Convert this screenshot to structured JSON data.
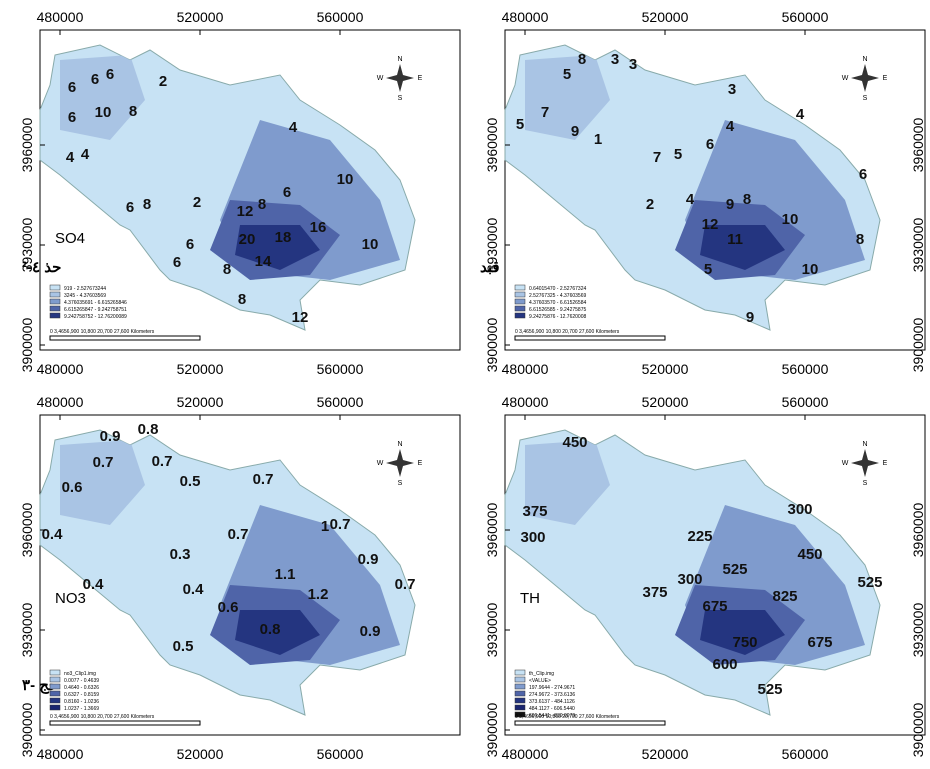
{
  "x_ticks": [
    480000,
    520000,
    560000
  ],
  "y_ticks": [
    3960000,
    3930000,
    3900000
  ],
  "panels": [
    {
      "label": "SO4",
      "note": "حذ ٤-²",
      "contour_labels": [
        "6",
        "6",
        "6",
        "2",
        "10",
        "8",
        "6",
        "4",
        "4",
        "4",
        "10",
        "6",
        "8",
        "2",
        "12",
        "8",
        "6",
        "16",
        "10",
        "20",
        "18",
        "6",
        "6",
        "14",
        "8",
        "8",
        "12"
      ],
      "legend": [
        "919 - 2.527673244",
        "3245 - 4.37603569",
        "4.376035691 - 6.615265846",
        "6.615265847 - 9.242758751",
        "9.242758752 - 12.76200089"
      ]
    },
    {
      "label": null,
      "note": "قبد",
      "contour_labels": [
        "5",
        "8",
        "3",
        "3",
        "3",
        "4",
        "5",
        "7",
        "9",
        "1",
        "6",
        "4",
        "7",
        "5",
        "2",
        "4",
        "12",
        "9",
        "8",
        "10",
        "11",
        "5",
        "10",
        "8",
        "6",
        "9"
      ],
      "legend": [
        "0.64015470 - 2.52767324",
        "2.52767325 - 4.37603569",
        "4.37603570 - 6.61526584",
        "6.61526585 - 9.24275875",
        "9.24275876 - 12.7620008"
      ]
    },
    {
      "label": "NO3",
      "note": "حج -٣",
      "contour_labels": [
        "0.9",
        "0.8",
        "0.7",
        "0.7",
        "0.6",
        "0.5",
        "0.7",
        "0.4",
        "0.3",
        "0.7",
        "1",
        "0.7",
        "0.9",
        "1.1",
        "1.2",
        "0.4",
        "0.4",
        "0.6",
        "0.7",
        "0.8",
        "0.9",
        "0.5"
      ],
      "legend": [
        "no3_Clip1.img",
        "0.0077 - 0.4639",
        "0.4640 - 0.6326",
        "0.6327 - 0.8159",
        "0.8160 - 1.0236",
        "1.0237 - 1.3669"
      ]
    },
    {
      "label": "TH",
      "note": null,
      "contour_labels": [
        "450",
        "375",
        "300",
        "225",
        "300",
        "450",
        "375",
        "300",
        "525",
        "675",
        "825",
        "525",
        "750",
        "675",
        "600",
        "525"
      ],
      "legend": [
        "th_Clip.img",
        "<VALUE>",
        "197.9644 - 274.9671",
        "274.9672 - 373.6136",
        "373.6137 - 484.1126",
        "484.1127 - 606.5440",
        "606.5441 - 839.0979"
      ]
    }
  ],
  "scale_bar": "0 3,4656,900 10,800 20,700 27,600 Kilometers",
  "compass": [
    "N",
    "W",
    "E",
    "S"
  ]
}
